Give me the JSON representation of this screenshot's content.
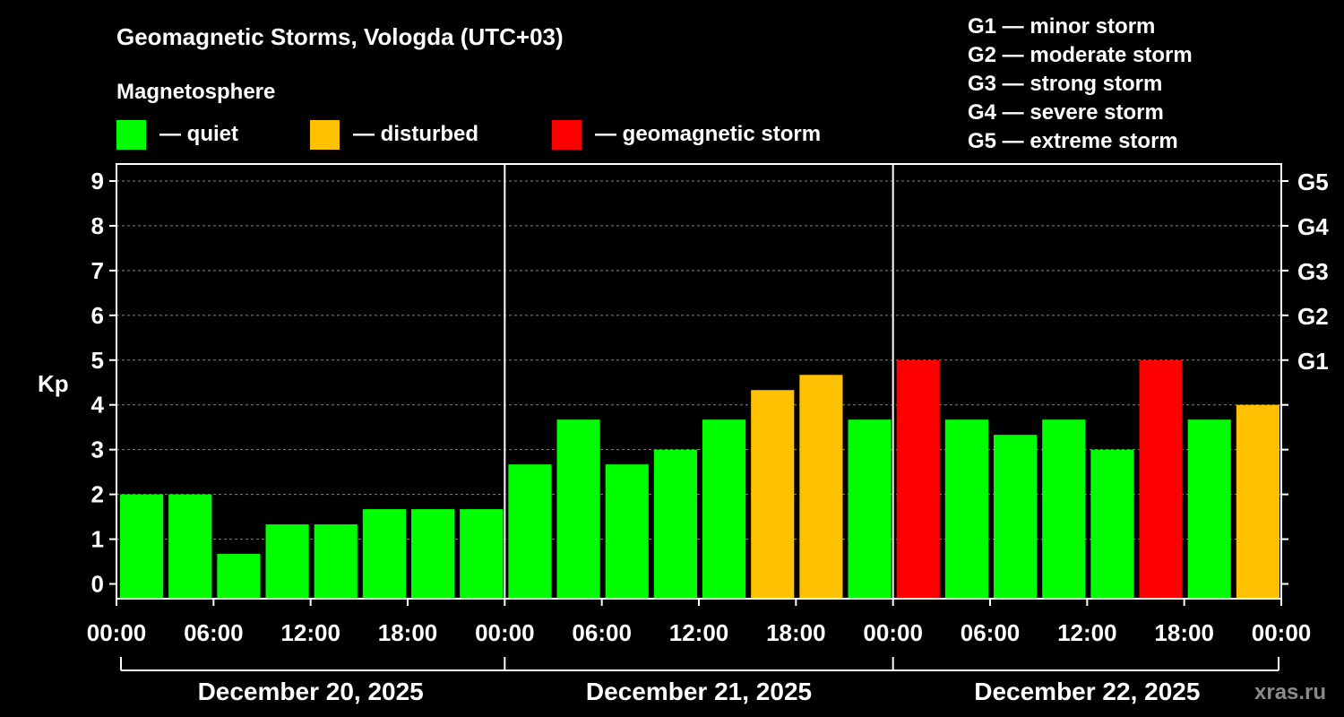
{
  "chart_data": {
    "type": "bar",
    "title": "Geomagnetic Storms, Vologda (UTC+03)",
    "legend_title": "Magnetosphere",
    "legend": [
      {
        "label": "— quiet",
        "color": "#00ff00"
      },
      {
        "label": "— disturbed",
        "color": "#ffc000"
      },
      {
        "label": "— geomagnetic storm",
        "color": "#ff0000"
      }
    ],
    "scale_legend": [
      "G1 — minor storm",
      "G2 — moderate storm",
      "G3 — strong storm",
      "G4 — severe storm",
      "G5 — extreme storm"
    ],
    "ylabel": "Kp",
    "ylim": [
      -0.33,
      9.38
    ],
    "yticks": [
      "0",
      "1",
      "2",
      "3",
      "4",
      "5",
      "6",
      "7",
      "8",
      "9"
    ],
    "right_ticks": [
      {
        "value": 5,
        "label": "G1"
      },
      {
        "value": 6,
        "label": "G2"
      },
      {
        "value": 7,
        "label": "G3"
      },
      {
        "value": 8,
        "label": "G4"
      },
      {
        "value": 9,
        "label": "G5"
      }
    ],
    "xtick_labels": [
      "00:00",
      "06:00",
      "12:00",
      "18:00",
      "00:00",
      "06:00",
      "12:00",
      "18:00",
      "00:00",
      "06:00",
      "12:00",
      "18:00",
      "00:00"
    ],
    "days": [
      "December 20, 2025",
      "December 21, 2025",
      "December 22, 2025"
    ],
    "values": [
      2.0,
      2.0,
      0.67,
      1.33,
      1.33,
      1.67,
      1.67,
      1.67,
      2.67,
      3.67,
      2.67,
      3.0,
      3.67,
      4.33,
      4.67,
      3.67,
      5.0,
      3.67,
      3.33,
      3.67,
      3.0,
      5.0,
      3.67,
      4.0
    ],
    "status": [
      "quiet",
      "quiet",
      "quiet",
      "quiet",
      "quiet",
      "quiet",
      "quiet",
      "quiet",
      "quiet",
      "quiet",
      "quiet",
      "quiet",
      "quiet",
      "disturbed",
      "disturbed",
      "quiet",
      "storm",
      "quiet",
      "quiet",
      "quiet",
      "quiet",
      "storm",
      "quiet",
      "disturbed"
    ],
    "colors": {
      "quiet": "#00ff00",
      "disturbed": "#ffc000",
      "storm": "#ff0000"
    },
    "grid": true
  },
  "watermark": "xras.ru"
}
